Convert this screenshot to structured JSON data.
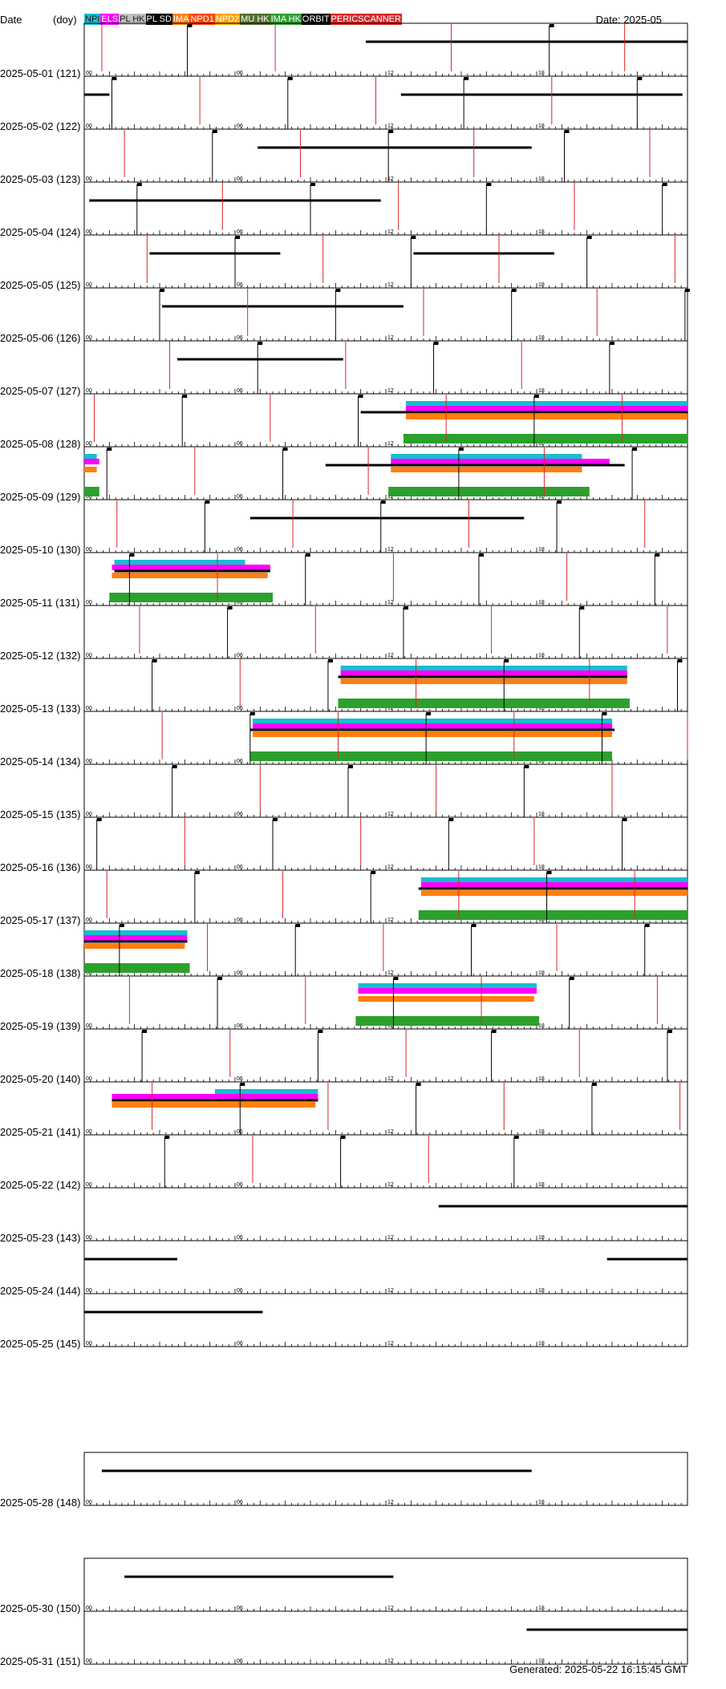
{
  "header": {
    "date_label": "Date",
    "doy_label": "(doy)",
    "title": "Date: 2025-05"
  },
  "legend": [
    {
      "label": "NPI",
      "color": "#17becf",
      "text_color": "#1a1a1a"
    },
    {
      "label": "ELS",
      "color": "#ff00ff",
      "text_color": "#ffffff"
    },
    {
      "label": "PL HK",
      "color": "#c0c0c0",
      "text_color": "#1a1a1a"
    },
    {
      "label": "PL SD",
      "color": "#000000",
      "text_color": "#ffffff"
    },
    {
      "label": "IMA",
      "color": "#ff7f0e",
      "text_color": "#ffffff"
    },
    {
      "label": "NPD1",
      "color": "#ff4500",
      "text_color": "#ffffff"
    },
    {
      "label": "NPD2",
      "color": "#ffa500",
      "text_color": "#ffffff"
    },
    {
      "label": "MU HK",
      "color": "#556b2f",
      "text_color": "#ffffff"
    },
    {
      "label": "IMA HK",
      "color": "#2ca02c",
      "text_color": "#ffffff"
    },
    {
      "label": "ORBIT",
      "color": "#000000",
      "text_color": "#ffffff"
    },
    {
      "label": "PERICSCANNER",
      "color": "#d62728",
      "text_color": "#ffffff"
    }
  ],
  "footer": "Generated: 2025-05-22 16:15:45 GMT",
  "chart_data": {
    "type": "timeline",
    "x_unit": "hour of day (UT)",
    "xlim": [
      0,
      24
    ],
    "x_tick_labels": [
      "00",
      "06",
      "12",
      "18"
    ],
    "rows": [
      {
        "label": "2025-05-01 (121)",
        "date": "2025-05-01",
        "doy": 121,
        "orbit": [
          [
            11.2,
            24
          ]
        ],
        "pass_ticks": [
          4.1,
          18.5
        ],
        "periapsis": [
          0.7,
          7.6,
          14.6,
          21.5
        ],
        "npi": [],
        "els": [],
        "ima": [],
        "ima_hk": []
      },
      {
        "label": "2025-05-02 (122)",
        "date": "2025-05-02",
        "doy": 122,
        "orbit": [
          [
            0,
            1
          ],
          [
            12.6,
            23.8
          ]
        ],
        "pass_ticks": [
          1.1,
          8.1,
          15.1,
          22.0
        ],
        "periapsis": [
          4.6,
          11.6,
          18.6
        ],
        "npi": [],
        "els": [],
        "ima": [],
        "ima_hk": []
      },
      {
        "label": "2025-05-03 (123)",
        "date": "2025-05-03",
        "doy": 123,
        "orbit": [
          [
            6.9,
            17.8
          ]
        ],
        "pass_ticks": [
          5.1,
          12.1,
          19.1
        ],
        "periapsis": [
          1.6,
          8.6,
          15.5,
          22.5
        ],
        "npi": [],
        "els": [],
        "ima": [],
        "ima_hk": []
      },
      {
        "label": "2025-05-04 (124)",
        "date": "2025-05-04",
        "doy": 124,
        "orbit": [
          [
            0.2,
            11.8
          ]
        ],
        "pass_ticks": [
          2.1,
          9.0,
          16.0,
          23.0
        ],
        "periapsis": [
          5.5,
          12.5,
          19.5
        ],
        "npi": [],
        "els": [],
        "ima": [],
        "ima_hk": []
      },
      {
        "label": "2025-05-05 (125)",
        "date": "2025-05-05",
        "doy": 125,
        "orbit": [
          [
            2.6,
            7.8
          ],
          [
            13.1,
            18.7
          ]
        ],
        "pass_ticks": [
          6.0,
          13.0,
          20.0
        ],
        "periapsis": [
          2.5,
          9.5,
          16.5,
          23.5
        ],
        "npi": [],
        "els": [],
        "ima": [],
        "ima_hk": []
      },
      {
        "label": "2025-05-06 (126)",
        "date": "2025-05-06",
        "doy": 126,
        "orbit": [
          [
            3.1,
            12.7
          ]
        ],
        "pass_ticks": [
          3.0,
          10.0,
          17.0,
          23.9
        ],
        "periapsis": [
          6.5,
          13.5,
          20.4
        ],
        "npi": [],
        "els": [],
        "ima": [],
        "ima_hk": []
      },
      {
        "label": "2025-05-07 (127)",
        "date": "2025-05-07",
        "doy": 127,
        "orbit": [
          [
            3.7,
            10.3
          ]
        ],
        "pass_ticks": [
          6.9,
          13.9,
          20.9
        ],
        "periapsis": [
          3.4,
          10.4,
          17.4
        ],
        "npi": [],
        "els": [],
        "ima": [],
        "ima_hk": []
      },
      {
        "label": "2025-05-08 (128)",
        "date": "2025-05-08",
        "doy": 128,
        "orbit": [
          [
            11.0,
            24
          ]
        ],
        "pass_ticks": [
          3.9,
          10.9,
          17.9
        ],
        "periapsis": [
          0.4,
          7.4,
          14.4,
          21.4
        ],
        "npi": [
          [
            12.8,
            24
          ]
        ],
        "els": [
          [
            12.8,
            24
          ]
        ],
        "ima": [
          [
            12.8,
            24
          ]
        ],
        "ima_hk": [
          [
            12.7,
            24
          ]
        ]
      },
      {
        "label": "2025-05-09 (129)",
        "date": "2025-05-09",
        "doy": 129,
        "orbit": [
          [
            9.6,
            21.5
          ]
        ],
        "pass_ticks": [
          0.9,
          7.9,
          14.9,
          21.8
        ],
        "periapsis": [
          4.4,
          11.3,
          18.3
        ],
        "npi": [
          [
            0,
            0.5
          ],
          [
            12.2,
            19.8
          ]
        ],
        "els": [
          [
            0,
            0.6
          ],
          [
            12.2,
            20.9
          ]
        ],
        "ima": [
          [
            0,
            0.5
          ],
          [
            12.2,
            19.8
          ]
        ],
        "ima_hk": [
          [
            0,
            0.6
          ],
          [
            12.1,
            20.1
          ]
        ]
      },
      {
        "label": "2025-05-10 (130)",
        "date": "2025-05-10",
        "doy": 130,
        "orbit": [
          [
            6.6,
            17.5
          ]
        ],
        "pass_ticks": [
          4.8,
          11.8,
          18.8
        ],
        "periapsis": [
          1.3,
          8.3,
          15.3,
          22.3
        ],
        "npi": [],
        "els": [],
        "ima": [],
        "ima_hk": []
      },
      {
        "label": "2025-05-11 (131)",
        "date": "2025-05-11",
        "doy": 131,
        "orbit": [
          [
            1.2,
            7.4
          ]
        ],
        "pass_ticks": [
          1.8,
          8.8,
          15.7,
          22.7
        ],
        "periapsis": [
          5.3,
          12.3,
          19.2
        ],
        "npi": [
          [
            1.2,
            6.4
          ]
        ],
        "els": [
          [
            1.1,
            7.4
          ]
        ],
        "ima": [
          [
            1.1,
            7.3
          ]
        ],
        "ima_hk": [
          [
            1.0,
            7.5
          ]
        ]
      },
      {
        "label": "2025-05-12 (132)",
        "date": "2025-05-12",
        "doy": 132,
        "orbit": [],
        "pass_ticks": [
          5.7,
          12.7,
          19.7
        ],
        "periapsis": [
          2.2,
          9.2,
          16.2,
          23.2
        ],
        "npi": [],
        "els": [],
        "ima": [],
        "ima_hk": []
      },
      {
        "label": "2025-05-13 (133)",
        "date": "2025-05-13",
        "doy": 133,
        "orbit": [
          [
            10.1,
            21.6
          ]
        ],
        "pass_ticks": [
          2.7,
          9.7,
          16.7,
          23.6
        ],
        "periapsis": [
          6.2,
          13.2,
          20.1
        ],
        "npi": [
          [
            10.2,
            21.6
          ]
        ],
        "els": [
          [
            10.2,
            21.6
          ]
        ],
        "ima": [
          [
            10.2,
            21.6
          ]
        ],
        "ima_hk": [
          [
            10.1,
            21.7
          ]
        ]
      },
      {
        "label": "2025-05-14 (134)",
        "date": "2025-05-14",
        "doy": 134,
        "orbit": [
          [
            6.6,
            21.1
          ]
        ],
        "pass_ticks": [
          6.6,
          13.6,
          20.6
        ],
        "periapsis": [
          3.1,
          10.1,
          17.1,
          24.0
        ],
        "npi": [
          [
            6.7,
            21.0
          ]
        ],
        "els": [
          [
            6.7,
            21.0
          ]
        ],
        "ima": [
          [
            6.7,
            21.0
          ]
        ],
        "ima_hk": [
          [
            6.6,
            21.0
          ]
        ]
      },
      {
        "label": "2025-05-15 (135)",
        "date": "2025-05-15",
        "doy": 135,
        "orbit": [],
        "pass_ticks": [
          3.5,
          10.5,
          17.5
        ],
        "periapsis": [
          7.0,
          14.0,
          21.0
        ],
        "npi": [],
        "els": [],
        "ima": [],
        "ima_hk": []
      },
      {
        "label": "2025-05-16 (136)",
        "date": "2025-05-16",
        "doy": 136,
        "orbit": [],
        "pass_ticks": [
          0.5,
          7.5,
          14.5,
          21.4
        ],
        "periapsis": [
          4.0,
          11.0,
          17.9
        ],
        "npi": [],
        "els": [],
        "ima": [],
        "ima_hk": []
      },
      {
        "label": "2025-05-17 (137)",
        "date": "2025-05-17",
        "doy": 137,
        "orbit": [
          [
            13.3,
            24
          ]
        ],
        "pass_ticks": [
          4.4,
          11.4,
          18.4
        ],
        "periapsis": [
          0.9,
          7.9,
          14.9,
          21.9
        ],
        "npi": [
          [
            13.4,
            24
          ]
        ],
        "els": [
          [
            13.4,
            24
          ]
        ],
        "ima": [
          [
            13.4,
            24
          ]
        ],
        "ima_hk": [
          [
            13.3,
            24
          ]
        ]
      },
      {
        "label": "2025-05-18 (138)",
        "date": "2025-05-18",
        "doy": 138,
        "orbit": [
          [
            0,
            4.1
          ]
        ],
        "pass_ticks": [
          1.4,
          8.4,
          15.4,
          22.3
        ],
        "periapsis": [
          4.9,
          11.9,
          18.8
        ],
        "npi": [
          [
            0,
            4.1
          ]
        ],
        "els": [
          [
            0,
            4.1
          ]
        ],
        "ima": [
          [
            0,
            4.0
          ]
        ],
        "ima_hk": [
          [
            0,
            4.2
          ]
        ]
      },
      {
        "label": "2025-05-19 (139)",
        "date": "2025-05-19",
        "doy": 139,
        "orbit": [],
        "pass_ticks": [
          5.3,
          12.3,
          19.3
        ],
        "periapsis": [
          1.8,
          8.8,
          15.8,
          22.8
        ],
        "npi": [
          [
            10.9,
            18.0
          ]
        ],
        "els": [
          [
            10.9,
            18.0
          ]
        ],
        "ima": [
          [
            10.9,
            17.9
          ]
        ],
        "ima_hk": [
          [
            10.8,
            18.1
          ]
        ]
      },
      {
        "label": "2025-05-20 (140)",
        "date": "2025-05-20",
        "doy": 140,
        "orbit": [],
        "pass_ticks": [
          2.3,
          9.3,
          16.2,
          23.2
        ],
        "periapsis": [
          5.8,
          12.8,
          19.7
        ],
        "npi": [],
        "els": [],
        "ima": [],
        "ima_hk": []
      },
      {
        "label": "2025-05-21 (141)",
        "date": "2025-05-21",
        "doy": 141,
        "orbit": [
          [
            1.1,
            9.3
          ]
        ],
        "pass_ticks": [
          6.2,
          13.2,
          20.2
        ],
        "periapsis": [
          2.7,
          9.7,
          16.7,
          23.7
        ],
        "npi": [
          [
            5.2,
            9.3
          ]
        ],
        "els": [
          [
            1.1,
            9.3
          ]
        ],
        "ima": [
          [
            1.1,
            9.2
          ]
        ],
        "ima_hk": []
      },
      {
        "label": "2025-05-22 (142)",
        "date": "2025-05-22",
        "doy": 142,
        "orbit": [],
        "pass_ticks": [
          3.2,
          10.2,
          17.1
        ],
        "periapsis": [
          6.7,
          13.7
        ],
        "npi": [],
        "els": [],
        "ima": [],
        "ima_hk": []
      },
      {
        "label": "2025-05-23 (143)",
        "date": "2025-05-23",
        "doy": 143,
        "orbit": [
          [
            14.1,
            24
          ]
        ],
        "pass_ticks": [],
        "periapsis": [],
        "npi": [],
        "els": [],
        "ima": [],
        "ima_hk": []
      },
      {
        "label": "2025-05-24 (144)",
        "date": "2025-05-24",
        "doy": 144,
        "orbit": [
          [
            0,
            3.7
          ],
          [
            20.8,
            24
          ]
        ],
        "pass_ticks": [],
        "periapsis": [],
        "npi": [],
        "els": [],
        "ima": [],
        "ima_hk": []
      },
      {
        "label": "2025-05-25 (145)",
        "date": "2025-05-25",
        "doy": 145,
        "orbit": [
          [
            0,
            7.1
          ]
        ],
        "pass_ticks": [],
        "periapsis": [],
        "npi": [],
        "els": [],
        "ima": [],
        "ima_hk": []
      },
      {
        "label": "2025-05-28 (148)",
        "date": "2025-05-28",
        "doy": 148,
        "orbit": [
          [
            0.7,
            17.8
          ]
        ],
        "pass_ticks": [],
        "periapsis": [],
        "npi": [],
        "els": [],
        "ima": [],
        "ima_hk": []
      },
      {
        "label": "2025-05-30 (150)",
        "date": "2025-05-30",
        "doy": 150,
        "orbit": [
          [
            1.6,
            12.3
          ]
        ],
        "pass_ticks": [],
        "periapsis": [],
        "npi": [],
        "els": [],
        "ima": [],
        "ima_hk": []
      },
      {
        "label": "2025-05-31 (151)",
        "date": "2025-05-31",
        "doy": 151,
        "orbit": [
          [
            17.6,
            24
          ]
        ],
        "pass_ticks": [],
        "periapsis": [],
        "npi": [],
        "els": [],
        "ima": [],
        "ima_hk": []
      }
    ]
  }
}
